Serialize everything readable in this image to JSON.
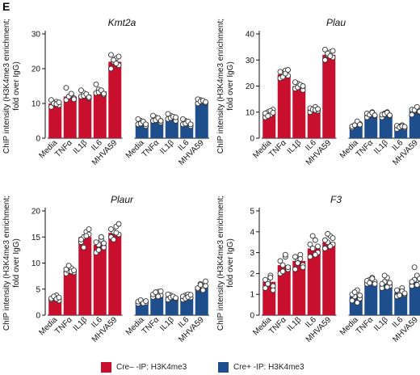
{
  "panel_label": "E",
  "colors": {
    "cre_minus": "#c8102e",
    "cre_plus": "#1f4e8c",
    "dot_fill": "#ffffff",
    "dot_stroke": "#333333"
  },
  "legend": [
    {
      "label": "Cre– -IP: H3K4me3",
      "color": "#c8102e"
    },
    {
      "label": "Cre+ -IP: H3K4me3",
      "color": "#1f4e8c"
    }
  ],
  "chart_data": [
    {
      "type": "bar",
      "title": "Kmt2a",
      "ylabel": "ChIP intensity (H3K4me3 enrichment; fold over IgG)",
      "ylim": [
        0,
        30
      ],
      "yticks": [
        0,
        10,
        20,
        30
      ],
      "categories": [
        "Media",
        "TNFα",
        "IL1β",
        "IL6",
        "MHVA59"
      ],
      "series": [
        {
          "name": "Cre– -IP: H3K4me3",
          "values": [
            10,
            12,
            12.5,
            13.5,
            22
          ],
          "points": [
            [
              9,
              10,
              10.5,
              9.5,
              11,
              10,
              9.8,
              10.3
            ],
            [
              11,
              12,
              12.5,
              11.5,
              14.5,
              12,
              12.8,
              11.2
            ],
            [
              12,
              13,
              12.5,
              11.5,
              13.8,
              12.2,
              12.7,
              11.8
            ],
            [
              13,
              14,
              13.5,
              12.5,
              15.5,
              13.2,
              13.8,
              12.8
            ],
            [
              20,
              22,
              23,
              21,
              24,
              22.5,
              21.5,
              23.5
            ]
          ]
        },
        {
          "name": "Cre+ -IP: H3K4me3",
          "values": [
            4.5,
            5.5,
            6,
            4.5,
            10.5
          ],
          "points": [
            [
              4,
              5,
              4.5,
              3.5,
              5.5,
              4.2,
              4.8,
              4
            ],
            [
              5,
              6,
              5.5,
              4.5,
              6.5,
              5.2,
              5.8,
              5
            ],
            [
              5.5,
              6.5,
              6,
              5,
              7,
              5.8,
              6.2,
              6
            ],
            [
              4,
              5,
              4.5,
              3.5,
              5.5,
              4.2,
              4.8,
              4
            ],
            [
              10,
              11,
              10.5,
              10.2,
              11.2,
              10.6,
              10.8,
              10.4
            ]
          ]
        }
      ]
    },
    {
      "type": "bar",
      "title": "Plau",
      "ylabel": "ChIP intensity (H3K4me3 enrichment; fold over IgG)",
      "ylim": [
        0,
        40
      ],
      "yticks": [
        0,
        10,
        20,
        30,
        40
      ],
      "categories": [
        "Media",
        "TNFα",
        "IL1β",
        "IL6",
        "MHVA59"
      ],
      "series": [
        {
          "name": "Cre– -IP: H3K4me3",
          "values": [
            9.5,
            24.5,
            20,
            11,
            32
          ],
          "points": [
            [
              8,
              10,
              9,
              11,
              9.5,
              8.5,
              10.5,
              9.8
            ],
            [
              23,
              25,
              26,
              24,
              25.5,
              23.5,
              24.8,
              26.2
            ],
            [
              19,
              21,
              20,
              18.5,
              21.5,
              19.5,
              20.5,
              20
            ],
            [
              10,
              11,
              12,
              10.5,
              11.5,
              11,
              10.8,
              11.2
            ],
            [
              30,
              32,
              33,
              31,
              34,
              32.5,
              31.5,
              33.5
            ]
          ]
        },
        {
          "name": "Cre+ -IP: H3K4me3",
          "values": [
            5,
            9,
            9,
            4.5,
            10.5
          ],
          "points": [
            [
              4,
              5,
              6,
              5.5,
              4.5,
              5,
              6.5,
              5.2
            ],
            [
              8,
              9,
              10,
              8.5,
              9.5,
              9,
              9.8,
              8.8
            ],
            [
              8,
              9.5,
              10,
              8.5,
              9,
              9.2,
              9.8,
              8.8
            ],
            [
              3.5,
              4.5,
              5,
              4,
              4.8,
              4.2,
              4.6,
              4.4
            ],
            [
              9,
              10.5,
              11.5,
              10,
              11,
              10.8,
              12,
              10.2
            ]
          ]
        }
      ]
    },
    {
      "type": "bar",
      "title": "Plaur",
      "ylabel": "ChIP intensity (H3K4me3 enrichment; fold over IgG)",
      "ylim": [
        0,
        20
      ],
      "yticks": [
        0,
        5,
        10,
        15,
        20
      ],
      "categories": [
        "Media",
        "TNFα",
        "IL1β",
        "IL6",
        "MHVA59"
      ],
      "series": [
        {
          "name": "Cre– -IP: H3K4me3",
          "values": [
            3.2,
            8.5,
            15,
            13.5,
            15.8
          ],
          "points": [
            [
              3,
              3.5,
              3.8,
              2.8,
              3.2,
              3.6,
              3.1,
              3.4
            ],
            [
              8,
              8.5,
              9,
              8.2,
              8.8,
              9.5,
              8.4,
              8.6
            ],
            [
              14,
              15,
              16,
              15.5,
              14.5,
              13,
              15.2,
              16.5
            ],
            [
              12,
              13.5,
              14.5,
              13,
              14,
              12.5,
              15,
              13.8
            ],
            [
              15,
              16,
              17,
              15.5,
              16.5,
              14.5,
              15.8,
              17.5
            ]
          ]
        },
        {
          "name": "Cre+ -IP: H3K4me3",
          "values": [
            2.5,
            4,
            3.5,
            3.5,
            5.5
          ],
          "points": [
            [
              2.2,
              2.8,
              2.5,
              2.4,
              2.6,
              2.9,
              2.3,
              2.7
            ],
            [
              3.5,
              4.2,
              4.5,
              3.8,
              4,
              4.4,
              3.6,
              4.6
            ],
            [
              3,
              3.8,
              3.5,
              3.2,
              4,
              3.4,
              3.6,
              3.3
            ],
            [
              3,
              3.8,
              4,
              3.4,
              3.6,
              3.2,
              3.5,
              3.9
            ],
            [
              5,
              6,
              5.5,
              6.5,
              5.2,
              5.8,
              4.8,
              5.6
            ]
          ]
        }
      ]
    },
    {
      "type": "bar",
      "title": "F3",
      "ylabel": "ChIP intensity (H3K4me3 enrichment; fold over IgG)",
      "ylim": [
        0,
        5
      ],
      "yticks": [
        0,
        1,
        2,
        3,
        4,
        5
      ],
      "categories": [
        "Media",
        "TNFα",
        "IL1β",
        "IL6",
        "MHVA59"
      ],
      "series": [
        {
          "name": "Cre– -IP: H3K4me3",
          "values": [
            1.6,
            2.4,
            2.6,
            3.2,
            3.5
          ],
          "points": [
            [
              1.3,
              1.6,
              1.9,
              1.4,
              1.7,
              1.5,
              1.8,
              1.2
            ],
            [
              2,
              2.4,
              2.8,
              2.2,
              2.6,
              2.1,
              2.9,
              2.3
            ],
            [
              2.2,
              2.6,
              2.9,
              2.4,
              2.8,
              2.5,
              2.7,
              2.3
            ],
            [
              2.8,
              3.2,
              3.6,
              3,
              3.4,
              3.8,
              2.9,
              3.3
            ],
            [
              3.2,
              3.5,
              3.8,
              3.4,
              3.6,
              3.9,
              3.3,
              3.7
            ]
          ]
        },
        {
          "name": "Cre+ -IP: H3K4me3",
          "values": [
            0.9,
            1.6,
            1.5,
            1.1,
            1.6
          ],
          "points": [
            [
              0.7,
              0.9,
              1.2,
              0.8,
              1,
              1.1,
              0.6,
              0.95
            ],
            [
              1.5,
              1.7,
              1.8,
              1.6,
              1.65,
              1.55,
              1.75,
              1.5
            ],
            [
              1.3,
              1.6,
              1.8,
              1.4,
              1.5,
              1.9,
              1.35,
              1.55
            ],
            [
              0.9,
              1.1,
              1.3,
              1,
              1.2,
              0.95,
              1.15,
              1.05
            ],
            [
              1.4,
              1.7,
              1.9,
              1.5,
              1.6,
              2.3,
              1.45,
              1.75
            ]
          ]
        }
      ]
    }
  ]
}
